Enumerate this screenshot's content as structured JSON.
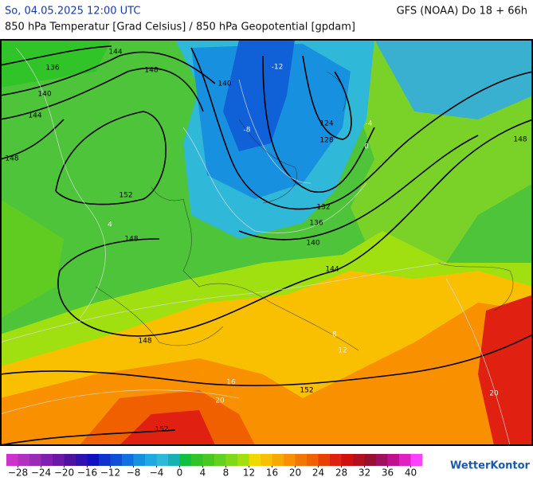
{
  "header": {
    "datetime": "So, 04.05.2025 12:00 UTC",
    "model_run": "GFS (NOAA) Do 18 + 66h",
    "subtitle": "850 hPa Temperatur [Grad Celsius] / 850 hPa Geopotential [gpdam]"
  },
  "colorbar": {
    "range": [
      -30,
      42
    ],
    "colors": [
      "#cc33cc",
      "#b030c0",
      "#9a2ab8",
      "#8020b0",
      "#6a18a8",
      "#5010a0",
      "#3010b0",
      "#1010c0",
      "#1030d0",
      "#1050d8",
      "#1070e0",
      "#1890e0",
      "#20a8e0",
      "#30b8d8",
      "#18b0b0",
      "#10c040",
      "#30c428",
      "#48c820",
      "#64d020",
      "#80d818",
      "#a0e010",
      "#f0d800",
      "#f8c000",
      "#f8a800",
      "#f89000",
      "#f07800",
      "#f06000",
      "#e84000",
      "#e02010",
      "#d01010",
      "#b01020",
      "#981030",
      "#a01060",
      "#c01090",
      "#e020c0",
      "#ff40ff"
    ],
    "ticks": [
      {
        "value": -28,
        "label": "−28"
      },
      {
        "value": -24,
        "label": "−24"
      },
      {
        "value": -20,
        "label": "−20"
      },
      {
        "value": -16,
        "label": "−16"
      },
      {
        "value": -12,
        "label": "−12"
      },
      {
        "value": -8,
        "label": "−8"
      },
      {
        "value": -4,
        "label": "−4"
      },
      0,
      4,
      8,
      12,
      16,
      20,
      24,
      28,
      32,
      36,
      40
    ]
  },
  "contour_labels": [
    136,
    140,
    144,
    148,
    148,
    152,
    148,
    148,
    152,
    152,
    144,
    140,
    136,
    132,
    128,
    124,
    140,
    144,
    148
  ],
  "isotherm_labels": [
    -12,
    -8,
    -4,
    0,
    4,
    8,
    12,
    16,
    20,
    20
  ],
  "logo": "WetterKontor"
}
